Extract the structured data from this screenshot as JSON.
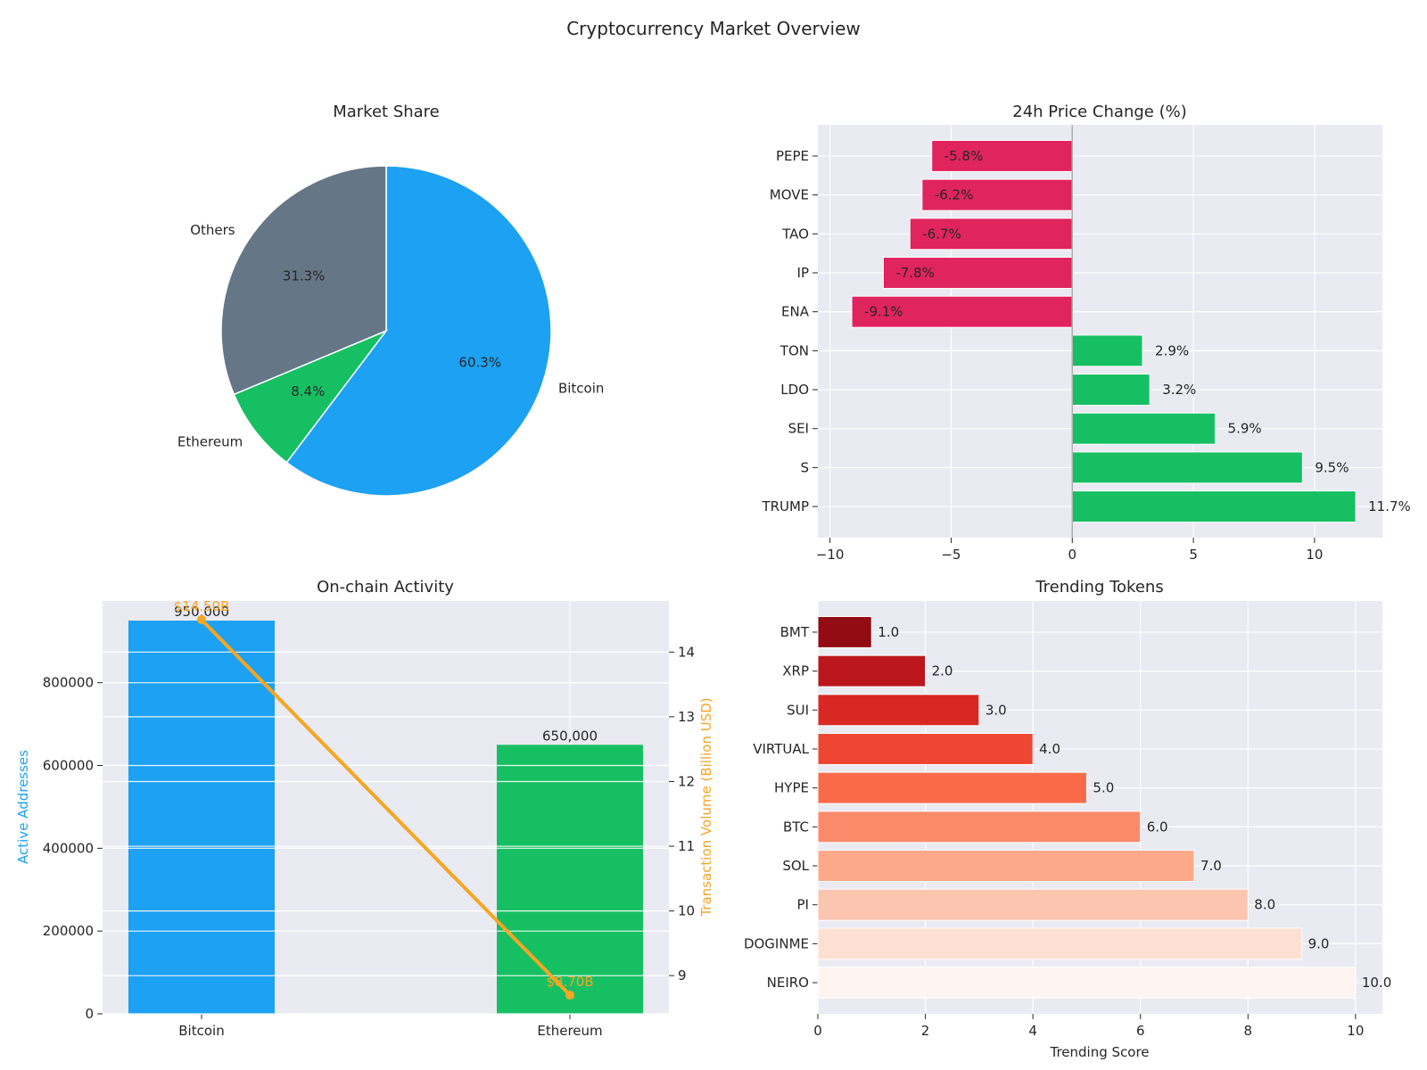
{
  "figure_title": "Cryptocurrency Market Overview",
  "colors": {
    "bitcoin": "#1DA1F2",
    "ethereum": "#17BF63",
    "others": "#657786",
    "negative": "#E0245E",
    "positive": "#17BF63",
    "volume_line": "#F5A623",
    "axes_bg": "#EAEAF2"
  },
  "chart_data": [
    {
      "type": "pie",
      "title": "Market Share",
      "labels": [
        "Bitcoin",
        "Ethereum",
        "Others"
      ],
      "values": [
        60.3,
        8.4,
        31.3
      ],
      "pct_labels": [
        "60.3%",
        "8.4%",
        "31.3%"
      ],
      "colors": [
        "#1DA1F2",
        "#17BF63",
        "#657786"
      ]
    },
    {
      "type": "bar",
      "orientation": "horizontal",
      "title": "24h Price Change (%)",
      "categories": [
        "TRUMP",
        "S",
        "SEI",
        "LDO",
        "TON",
        "ENA",
        "IP",
        "TAO",
        "MOVE",
        "PEPE"
      ],
      "values": [
        11.7,
        9.5,
        5.9,
        3.2,
        2.9,
        -9.1,
        -7.8,
        -6.7,
        -6.2,
        -5.8
      ],
      "value_labels": [
        "11.7%",
        "9.5%",
        "5.9%",
        "3.2%",
        "2.9%",
        "-9.1%",
        "-7.8%",
        "-6.7%",
        "-6.2%",
        "-5.8%"
      ],
      "xlim": [
        -10.5,
        12.8
      ],
      "xticks": [
        -10,
        -5,
        0,
        5,
        10
      ],
      "xtick_labels": [
        "−10",
        "−5",
        "0",
        "5",
        "10"
      ]
    },
    {
      "type": "bar",
      "title": "On-chain Activity",
      "categories": [
        "Bitcoin",
        "Ethereum"
      ],
      "series": [
        {
          "values": [
            950000,
            650000
          ],
          "value_labels": [
            "950,000",
            "650,000"
          ],
          "colors": [
            "#1DA1F2",
            "#17BF63"
          ]
        },
        {
          "type": "line",
          "values": [
            14.5,
            8.7
          ],
          "value_labels": [
            "$14.50B",
            "$8.70B"
          ],
          "color": "#F5A623"
        }
      ],
      "ylabel": "Active Addresses",
      "ylim": [
        0,
        997500
      ],
      "yticks": [
        0,
        200000,
        400000,
        600000,
        800000
      ],
      "y2label": "Transaction Volume (Billion USD)",
      "y2lim": [
        8.41,
        14.79
      ],
      "y2ticks": [
        9,
        10,
        11,
        12,
        13,
        14
      ]
    },
    {
      "type": "bar",
      "orientation": "horizontal",
      "title": "Trending Tokens",
      "categories": [
        "NEIRO",
        "DOGINME",
        "PI",
        "SOL",
        "BTC",
        "HYPE",
        "VIRTUAL",
        "SUI",
        "XRP",
        "BMT"
      ],
      "values": [
        10.0,
        9.0,
        8.0,
        7.0,
        6.0,
        5.0,
        4.0,
        3.0,
        2.0,
        1.0
      ],
      "value_labels": [
        "10.0",
        "9.0",
        "8.0",
        "7.0",
        "6.0",
        "5.0",
        "4.0",
        "3.0",
        "2.0",
        "1.0"
      ],
      "colors": [
        "#FFF5F0",
        "#FEE0D2",
        "#FCC5B0",
        "#FCA98A",
        "#FB8A6A",
        "#F96A4B",
        "#EF4533",
        "#D92823",
        "#BA161B",
        "#920C13"
      ],
      "xlabel": "Trending Score",
      "xlim": [
        0,
        10.5
      ],
      "xticks": [
        0,
        2,
        4,
        6,
        8,
        10
      ]
    }
  ]
}
